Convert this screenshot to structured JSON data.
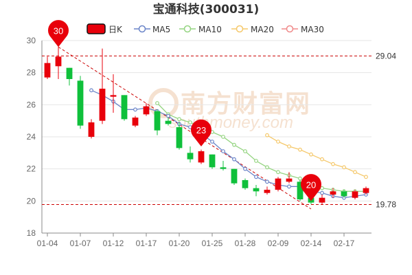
{
  "chart_data": {
    "type": "candlestick",
    "title": "宝通科技(300031)",
    "y_range": [
      18,
      30
    ],
    "y_ticks": [
      "18",
      "20",
      "22",
      "24",
      "26",
      "28",
      "30"
    ],
    "x_tick_labels": [
      "01-04",
      "01-07",
      "01-12",
      "01-17",
      "01-20",
      "01-25",
      "01-28",
      "02-09",
      "02-14",
      "02-17"
    ],
    "x_tick_candle_index": [
      0,
      3,
      6,
      9,
      12,
      15,
      18,
      21,
      24,
      27
    ],
    "legend": {
      "kline": "日K",
      "ma5": "MA5",
      "ma10": "MA10",
      "ma20": "MA20",
      "ma30": "MA30"
    },
    "colors": {
      "up": "#e8000b",
      "down": "#0fc03b",
      "ma5": "#6a84c8",
      "ma10": "#94d480",
      "ma20": "#f5c86a",
      "ma30": "#f08a8a",
      "pin": "#e8000b",
      "ref": "#cc0000",
      "trend": "#cc0000"
    },
    "candles": [
      {
        "open": 27.7,
        "high": 29.0,
        "low": 27.6,
        "close": 28.6
      },
      {
        "open": 28.4,
        "high": 29.6,
        "low": 27.6,
        "close": 29.0
      },
      {
        "open": 28.3,
        "high": 28.3,
        "low": 27.2,
        "close": 27.6
      },
      {
        "open": 27.5,
        "high": 27.8,
        "low": 24.5,
        "close": 24.7
      },
      {
        "open": 24.0,
        "high": 25.1,
        "low": 23.9,
        "close": 24.9
      },
      {
        "open": 25.0,
        "high": 29.5,
        "low": 24.8,
        "close": 27.0
      },
      {
        "open": 26.5,
        "high": 27.9,
        "low": 25.5,
        "close": 26.6
      },
      {
        "open": 26.6,
        "high": 26.6,
        "low": 25.0,
        "close": 25.1
      },
      {
        "open": 24.7,
        "high": 25.3,
        "low": 24.6,
        "close": 25.2
      },
      {
        "open": 25.4,
        "high": 26.1,
        "low": 25.3,
        "close": 25.9
      },
      {
        "open": 25.6,
        "high": 25.7,
        "low": 24.1,
        "close": 24.4
      },
      {
        "open": 25.0,
        "high": 25.2,
        "low": 24.7,
        "close": 24.8
      },
      {
        "open": 24.6,
        "high": 24.9,
        "low": 23.2,
        "close": 23.3
      },
      {
        "open": 23.0,
        "high": 23.4,
        "low": 22.4,
        "close": 22.6
      },
      {
        "open": 22.4,
        "high": 23.2,
        "low": 22.3,
        "close": 23.1
      },
      {
        "open": 22.9,
        "high": 22.9,
        "low": 22.0,
        "close": 22.1
      },
      {
        "open": 22.1,
        "high": 22.5,
        "low": 21.9,
        "close": 22.0
      },
      {
        "open": 22.0,
        "high": 22.0,
        "low": 21.0,
        "close": 21.1
      },
      {
        "open": 21.3,
        "high": 21.4,
        "low": 20.7,
        "close": 20.8
      },
      {
        "open": 20.8,
        "high": 21.0,
        "low": 20.3,
        "close": 20.6
      },
      {
        "open": 20.5,
        "high": 20.9,
        "low": 20.4,
        "close": 20.7
      },
      {
        "open": 20.7,
        "high": 21.5,
        "low": 20.6,
        "close": 21.4
      },
      {
        "open": 21.2,
        "high": 21.8,
        "low": 21.1,
        "close": 21.4
      },
      {
        "open": 21.2,
        "high": 21.3,
        "low": 20.0,
        "close": 20.1
      },
      {
        "open": 20.2,
        "high": 20.7,
        "low": 19.8,
        "close": 19.9
      },
      {
        "open": 19.9,
        "high": 20.4,
        "low": 19.8,
        "close": 20.2
      },
      {
        "open": 20.4,
        "high": 20.8,
        "low": 20.2,
        "close": 20.6
      },
      {
        "open": 20.6,
        "high": 20.7,
        "low": 20.2,
        "close": 20.3
      },
      {
        "open": 20.2,
        "high": 20.7,
        "low": 20.1,
        "close": 20.6
      },
      {
        "open": 20.5,
        "high": 20.9,
        "low": 20.4,
        "close": 20.8
      }
    ],
    "ma5": [
      null,
      null,
      null,
      null,
      26.9,
      26.6,
      26.2,
      25.7,
      25.7,
      25.8,
      25.6,
      25.3,
      24.8,
      24.6,
      24.2,
      23.7,
      23.1,
      22.6,
      22.0,
      21.5,
      21.2,
      21.0,
      20.9,
      20.9,
      20.6,
      20.5,
      20.3,
      20.2,
      20.3,
      20.4
    ],
    "ma10": [
      null,
      null,
      null,
      null,
      null,
      null,
      null,
      null,
      null,
      null,
      26.1,
      25.4,
      25.1,
      24.9,
      24.6,
      24.3,
      24.0,
      23.5,
      23.1,
      22.5,
      22.1,
      21.8,
      21.6,
      21.4,
      21.0,
      20.8,
      20.7,
      20.6,
      20.6,
      20.6
    ],
    "ma20": [
      null,
      null,
      null,
      null,
      null,
      null,
      null,
      null,
      null,
      null,
      null,
      null,
      null,
      null,
      null,
      null,
      null,
      null,
      null,
      null,
      24.1,
      23.7,
      23.4,
      23.2,
      22.9,
      22.6,
      22.3,
      22.1,
      21.8,
      21.5
    ],
    "ref_high": {
      "value": 29.04,
      "label": "29.04"
    },
    "ref_low": {
      "value": 19.78,
      "label": "19.78"
    },
    "pins": [
      {
        "label": "30",
        "candle": 1,
        "value": 29.6
      },
      {
        "label": "23",
        "candle": 14,
        "value": 23.4
      },
      {
        "label": "20",
        "candle": 24,
        "value": 20.0
      }
    ],
    "trend_line": {
      "from_candle": 1,
      "from_value": 29.6,
      "to_candle": 24,
      "to_value": 19.5
    },
    "watermark": {
      "name": "南方财富网",
      "url": "southmoney.com"
    }
  }
}
